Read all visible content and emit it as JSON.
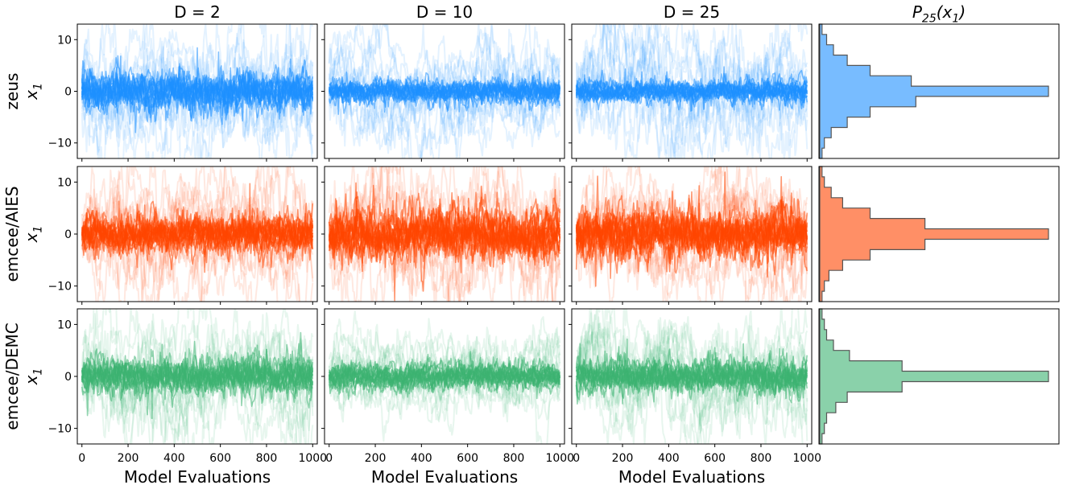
{
  "chart_data": {
    "type": "line",
    "column_titles": [
      "D = 2",
      "D = 10",
      "D = 25"
    ],
    "hist_title": {
      "base": "P",
      "sub": "25",
      "arg_pre": "(x",
      "arg_sub": "1",
      "arg_post": ")"
    },
    "row_labels": [
      "zeus",
      "emcee/AIES",
      "emcee/DEMC"
    ],
    "ylabel": {
      "base": "x",
      "sub": "1"
    },
    "xlabel": "Model Evaluations",
    "x_ticks": [
      "0",
      "200",
      "400",
      "600",
      "800",
      "1000"
    ],
    "y_ticks": [
      "10",
      "0",
      "−10"
    ],
    "xlim": [
      -20,
      1020
    ],
    "ylim": [
      -13,
      13
    ],
    "colors": {
      "zeus": "#1e90ff",
      "emcee/AIES": "#ff4500",
      "emcee/DEMC": "#3cb371"
    },
    "trace_summary": [
      {
        "sampler": "zeus",
        "D": 2,
        "n_steps": 1000,
        "center": 0,
        "core_spread": 2.5,
        "outer_range": [
          -13,
          13
        ]
      },
      {
        "sampler": "zeus",
        "D": 10,
        "n_steps": 1000,
        "center": 0,
        "core_spread": 1.5,
        "outer_range": [
          -12,
          10
        ]
      },
      {
        "sampler": "zeus",
        "D": 25,
        "n_steps": 1000,
        "center": 0,
        "core_spread": 1.5,
        "outer_range": [
          -12,
          13
        ]
      },
      {
        "sampler": "emcee/AIES",
        "D": 2,
        "n_steps": 1000,
        "center": 0,
        "core_spread": 2.5,
        "outer_range": [
          -13,
          13
        ]
      },
      {
        "sampler": "emcee/AIES",
        "D": 10,
        "n_steps": 1000,
        "center": 0,
        "core_spread": 3,
        "outer_range": [
          -13,
          13
        ]
      },
      {
        "sampler": "emcee/AIES",
        "D": 25,
        "n_steps": 1000,
        "center": 0,
        "core_spread": 3,
        "outer_range": [
          -13,
          13
        ]
      },
      {
        "sampler": "emcee/DEMC",
        "D": 2,
        "n_steps": 1000,
        "center": 0,
        "core_spread": 2.5,
        "outer_range": [
          -13,
          13
        ]
      },
      {
        "sampler": "emcee/DEMC",
        "D": 10,
        "n_steps": 1000,
        "center": 0,
        "core_spread": 1.5,
        "outer_range": [
          -9,
          8
        ]
      },
      {
        "sampler": "emcee/DEMC",
        "D": 25,
        "n_steps": 1000,
        "center": 0,
        "core_spread": 2,
        "outer_range": [
          -13,
          13
        ]
      }
    ],
    "histogram": {
      "orientation": "horizontal",
      "bins_y": [
        -13,
        -11,
        -9,
        -7,
        -5,
        -3,
        -1,
        1,
        3,
        5,
        7,
        9,
        11,
        13
      ],
      "series": [
        {
          "name": "zeus",
          "counts": [
            0.01,
            0.02,
            0.05,
            0.12,
            0.22,
            0.42,
            1.0,
            0.4,
            0.22,
            0.12,
            0.06,
            0.03,
            0.01
          ]
        },
        {
          "name": "emcee/AIES",
          "counts": [
            0.01,
            0.02,
            0.04,
            0.1,
            0.22,
            0.46,
            1.0,
            0.46,
            0.22,
            0.1,
            0.05,
            0.02,
            0.01
          ]
        },
        {
          "name": "emcee/DEMC",
          "counts": [
            0.01,
            0.02,
            0.03,
            0.07,
            0.12,
            0.36,
            1.0,
            0.36,
            0.13,
            0.06,
            0.03,
            0.02,
            0.01
          ]
        }
      ]
    }
  }
}
